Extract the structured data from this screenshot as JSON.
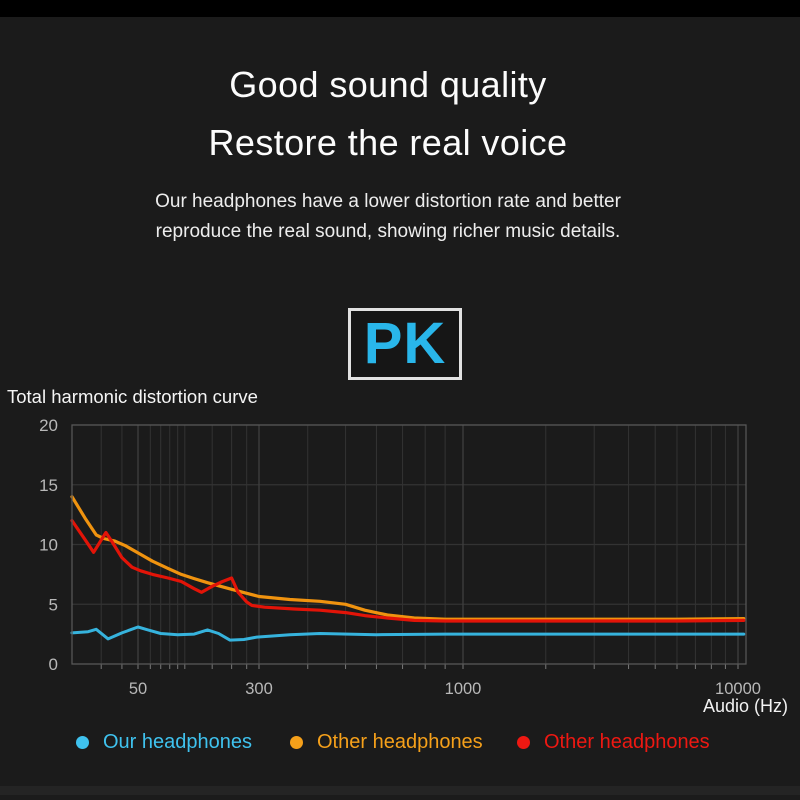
{
  "page": {
    "background": "#1b1b1b",
    "top_bar_color": "#000000"
  },
  "hero": {
    "title_line1": "Good sound quality",
    "title_line2": "Restore the real voice",
    "description_line1": "Our headphones have a lower distortion rate and better",
    "description_line2": "reproduce the real sound, showing richer music details."
  },
  "pk_badge": {
    "label": "PK",
    "text_color": "#29b6ea",
    "border_color": "#e2e2e2"
  },
  "chart_data": {
    "type": "line",
    "title": "Total harmonic distortion curve",
    "xlabel": "Audio (Hz)",
    "ylabel": "",
    "x_scale": "log",
    "x_ticks": [
      {
        "label": "50",
        "hz": 50
      },
      {
        "label": "300",
        "hz": 300
      },
      {
        "label": "1000",
        "hz": 1000
      },
      {
        "label": "10000",
        "hz": 10000
      }
    ],
    "ylim": [
      0,
      20
    ],
    "y_ticks": [
      0,
      5,
      10,
      15,
      20
    ],
    "grid": true,
    "legend_position": "bottom",
    "style": {
      "plot_background": "#1b1b1b",
      "grid_minor_color": "#333333",
      "grid_major_color": "#3f3f3f",
      "border_color": "#565656",
      "axis_text_color": "#b8b8b8",
      "tick_color": "#787878"
    },
    "series": [
      {
        "name": "Our headphones",
        "color": "#36b3dd",
        "legend_color": "#3fc2ee",
        "points": [
          [
            20,
            2.6
          ],
          [
            25,
            2.7
          ],
          [
            28,
            2.9
          ],
          [
            33,
            2.1
          ],
          [
            40,
            2.6
          ],
          [
            50,
            3.1
          ],
          [
            58,
            2.85
          ],
          [
            70,
            2.55
          ],
          [
            90,
            2.45
          ],
          [
            115,
            2.5
          ],
          [
            140,
            2.85
          ],
          [
            165,
            2.55
          ],
          [
            195,
            2.0
          ],
          [
            240,
            2.05
          ],
          [
            290,
            2.25
          ],
          [
            360,
            2.45
          ],
          [
            430,
            2.55
          ],
          [
            600,
            2.45
          ],
          [
            900,
            2.5
          ],
          [
            2000,
            2.5
          ],
          [
            5000,
            2.5
          ],
          [
            10500,
            2.5
          ]
        ]
      },
      {
        "name": "Other headphones",
        "color": "#f0930f",
        "legend_color": "#f5a01a",
        "points": [
          [
            20,
            14
          ],
          [
            24,
            12.2
          ],
          [
            28,
            10.8
          ],
          [
            31,
            10.5
          ],
          [
            36,
            10.3
          ],
          [
            42,
            9.9
          ],
          [
            50,
            9.3
          ],
          [
            62,
            8.6
          ],
          [
            78,
            8.0
          ],
          [
            95,
            7.5
          ],
          [
            115,
            7.15
          ],
          [
            140,
            6.8
          ],
          [
            170,
            6.5
          ],
          [
            200,
            6.25
          ],
          [
            245,
            5.95
          ],
          [
            300,
            5.65
          ],
          [
            360,
            5.4
          ],
          [
            430,
            5.25
          ],
          [
            500,
            5.0
          ],
          [
            560,
            4.5
          ],
          [
            640,
            4.1
          ],
          [
            750,
            3.85
          ],
          [
            900,
            3.75
          ],
          [
            1500,
            3.75
          ],
          [
            3000,
            3.75
          ],
          [
            6000,
            3.75
          ],
          [
            10500,
            3.8
          ]
        ]
      },
      {
        "name": "Other headphones",
        "color": "#e21408",
        "legend_color": "#ee1812",
        "points": [
          [
            20,
            12
          ],
          [
            24,
            10.4
          ],
          [
            27,
            9.35
          ],
          [
            32,
            11.0
          ],
          [
            35,
            10.2
          ],
          [
            40,
            8.9
          ],
          [
            46,
            8.1
          ],
          [
            52,
            7.8
          ],
          [
            62,
            7.5
          ],
          [
            78,
            7.2
          ],
          [
            95,
            6.9
          ],
          [
            115,
            6.3
          ],
          [
            128,
            6.0
          ],
          [
            150,
            6.5
          ],
          [
            175,
            6.9
          ],
          [
            200,
            7.2
          ],
          [
            220,
            6.0
          ],
          [
            250,
            5.2
          ],
          [
            270,
            4.9
          ],
          [
            310,
            4.75
          ],
          [
            370,
            4.6
          ],
          [
            430,
            4.5
          ],
          [
            500,
            4.3
          ],
          [
            560,
            4.05
          ],
          [
            640,
            3.85
          ],
          [
            750,
            3.65
          ],
          [
            900,
            3.6
          ],
          [
            1500,
            3.6
          ],
          [
            3000,
            3.6
          ],
          [
            6000,
            3.6
          ],
          [
            10500,
            3.65
          ]
        ]
      }
    ]
  }
}
